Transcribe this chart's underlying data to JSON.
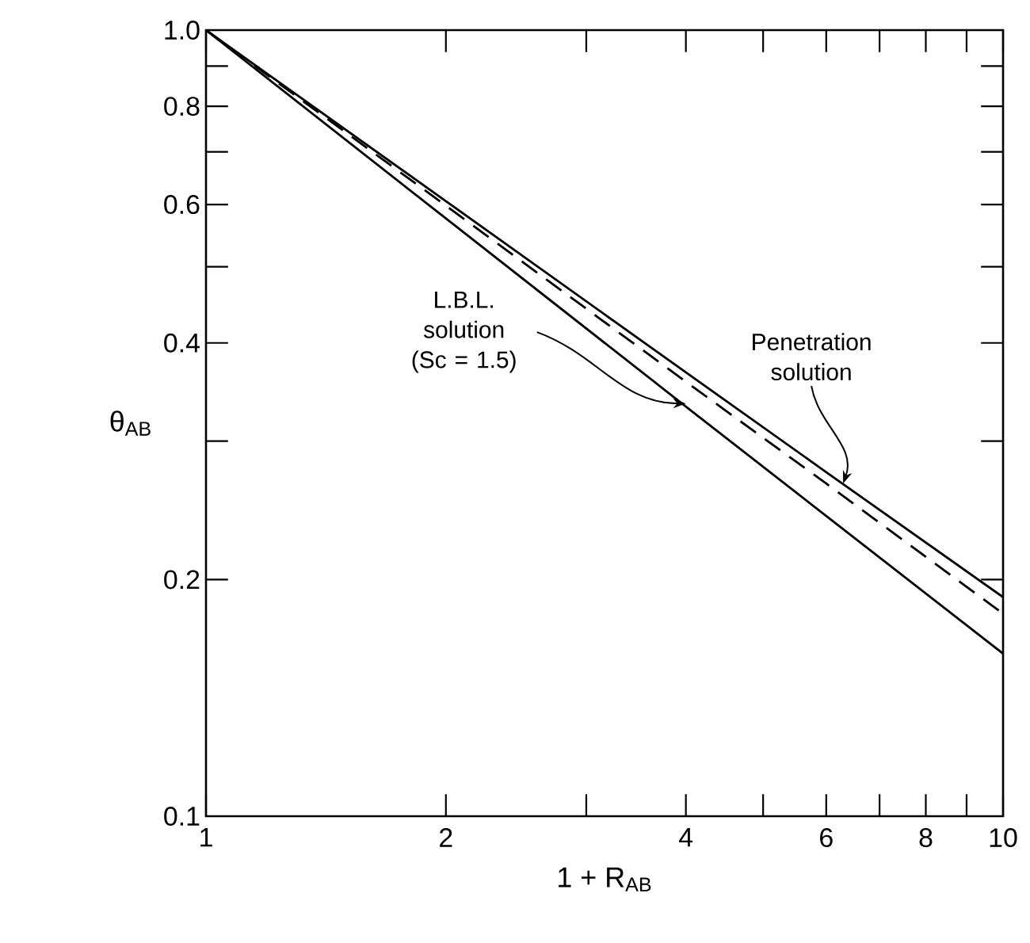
{
  "chart_data": {
    "type": "line",
    "log": "xy",
    "xlabel": "1 + R$_{AB}$",
    "ylabel": "θ$_{AB}$",
    "xlim": [
      1,
      10
    ],
    "ylim": [
      0.1,
      1
    ],
    "xticks": [
      1,
      2,
      {
        "value": 3,
        "label": null
      },
      4,
      {
        "value": 5,
        "label": null
      },
      6,
      {
        "value": 7,
        "label": null
      },
      8,
      {
        "value": 9,
        "label": null
      },
      10
    ],
    "yticks": [
      0.1,
      0.2,
      {
        "value": 0.3,
        "label": null
      },
      0.4,
      {
        "value": 0.5,
        "label": null
      },
      0.6,
      {
        "value": 0.7,
        "label": null
      },
      0.8,
      {
        "value": 0.9,
        "label": null
      },
      {
        "value": 1,
        "label": "1.0"
      }
    ],
    "grid": false,
    "marker": "none",
    "series": [
      {
        "color": "#000000",
        "line_style": "solid",
        "x": [
          1,
          2,
          4,
          6,
          10
        ],
        "values": [
          1,
          0.606,
          0.367,
          0.274,
          0.19
        ]
      },
      {
        "color": "#000000",
        "line_style": "dashed",
        "x": [
          1,
          2,
          4,
          6,
          10
        ],
        "values": [
          1,
          0.598,
          0.357,
          0.265,
          0.181
        ]
      },
      {
        "color": "#000000",
        "line_style": "solid",
        "x": [
          1,
          2,
          4,
          6,
          10
        ],
        "values": [
          1,
          0.576,
          0.332,
          0.241,
          0.161
        ]
      }
    ],
    "annotations": [
      {
        "text": "L.B.L. solution (Sc = 1.5)",
        "x": 4,
        "y": 0.335
      },
      {
        "text": "Penetration solution",
        "x": 6.3,
        "y": 0.265
      }
    ]
  }
}
